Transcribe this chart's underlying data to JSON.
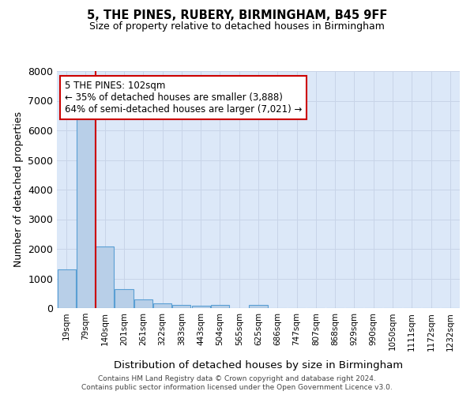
{
  "title1": "5, THE PINES, RUBERY, BIRMINGHAM, B45 9FF",
  "title2": "Size of property relative to detached houses in Birmingham",
  "xlabel": "Distribution of detached houses by size in Birmingham",
  "ylabel": "Number of detached properties",
  "categories": [
    "19sqm",
    "79sqm",
    "140sqm",
    "201sqm",
    "261sqm",
    "322sqm",
    "383sqm",
    "443sqm",
    "504sqm",
    "565sqm",
    "625sqm",
    "686sqm",
    "747sqm",
    "807sqm",
    "868sqm",
    "929sqm",
    "990sqm",
    "1050sqm",
    "1111sqm",
    "1172sqm",
    "1232sqm"
  ],
  "values": [
    1300,
    6600,
    2080,
    650,
    300,
    150,
    110,
    80,
    110,
    0,
    110,
    0,
    0,
    0,
    0,
    0,
    0,
    0,
    0,
    0,
    0
  ],
  "bar_color": "#b8cfe8",
  "bar_edge_color": "#5a9fd4",
  "annotation_line1": "5 THE PINES: 102sqm",
  "annotation_line2": "← 35% of detached houses are smaller (3,888)",
  "annotation_line3": "64% of semi-detached houses are larger (7,021) →",
  "annotation_box_color": "#ffffff",
  "annotation_box_edge_color": "#cc0000",
  "vline_color": "#cc0000",
  "ylim": [
    0,
    8000
  ],
  "yticks": [
    0,
    1000,
    2000,
    3000,
    4000,
    5000,
    6000,
    7000,
    8000
  ],
  "grid_color": "#c8d4e8",
  "bg_color": "#dce8f8",
  "footer1": "Contains HM Land Registry data © Crown copyright and database right 2024.",
  "footer2": "Contains public sector information licensed under the Open Government Licence v3.0."
}
